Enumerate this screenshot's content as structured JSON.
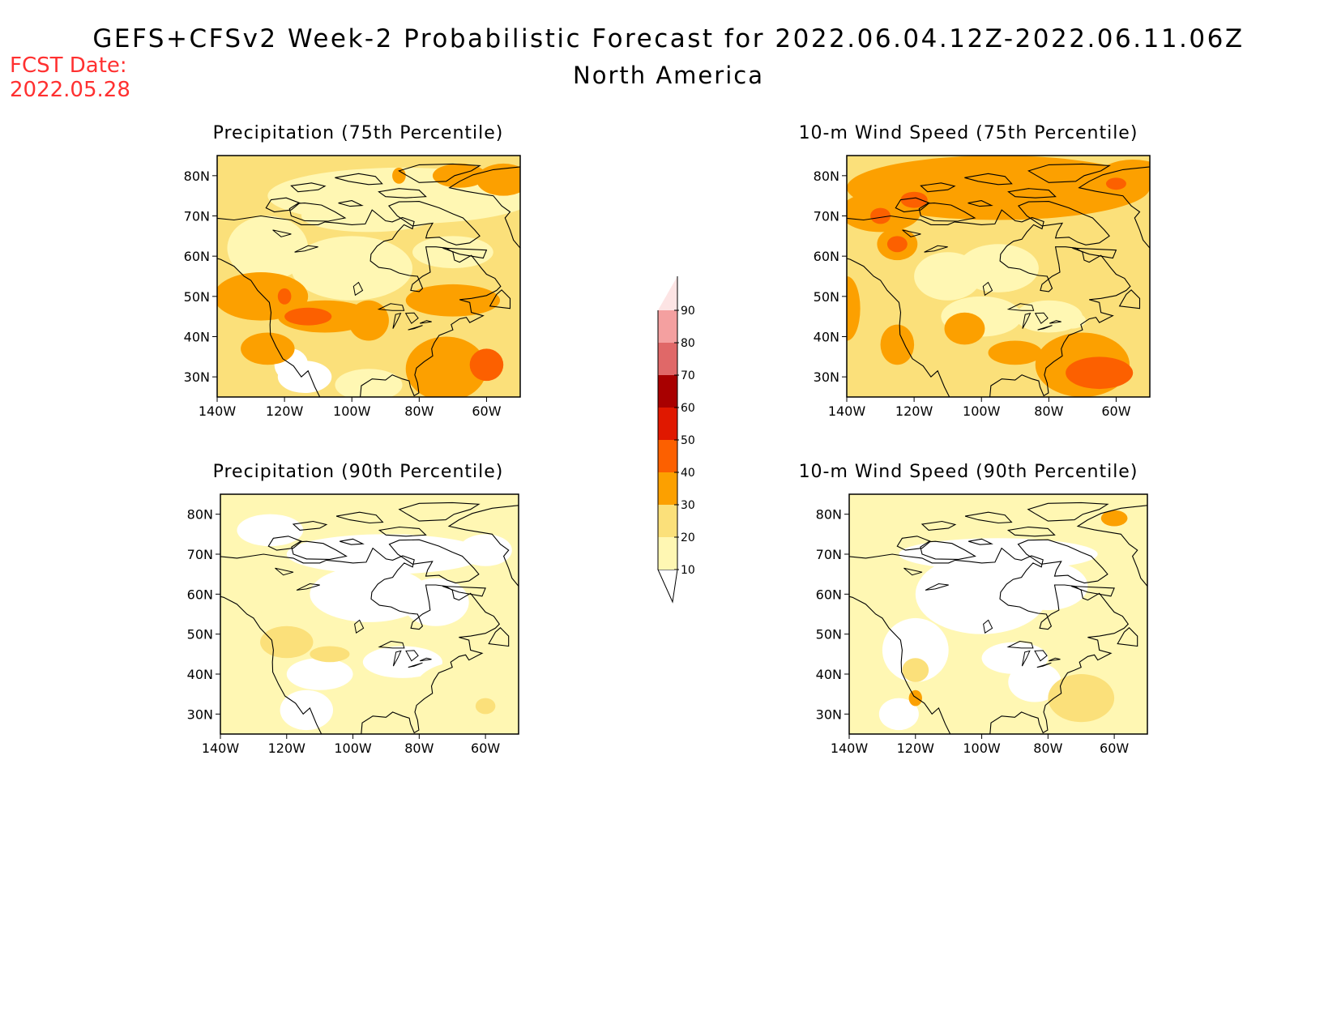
{
  "header": {
    "title": "GEFS+CFSv2 Week-2 Probabilistic Forecast for 2022.06.04.12Z-2022.06.11.06Z",
    "region": "North America",
    "fcst_label": "FCST Date:",
    "fcst_date": "2022.05.28"
  },
  "panels": [
    {
      "title": "Precipitation (75th Percentile)"
    },
    {
      "title": "10-m Wind Speed (75th Percentile)"
    },
    {
      "title": "Precipitation (90th Percentile)"
    },
    {
      "title": "10-m Wind Speed (90th Percentile)"
    }
  ],
  "axes": {
    "lat_ticks": [
      "30N",
      "40N",
      "50N",
      "60N",
      "70N",
      "80N"
    ],
    "lon_ticks": [
      "140W",
      "120W",
      "100W",
      "80W",
      "60W"
    ],
    "lat_range_deg": [
      25,
      85
    ],
    "lon_range_deg": [
      -140,
      -50
    ]
  },
  "colorbar": {
    "levels": [
      "10",
      "20",
      "30",
      "40",
      "50",
      "60",
      "70",
      "80",
      "90"
    ],
    "colors": [
      "#fff7b3",
      "#fbe07a",
      "#fca000",
      "#fc6000",
      "#e01800",
      "#a80000",
      "#e06868",
      "#f4a0a0",
      "#fde4e4"
    ]
  }
}
